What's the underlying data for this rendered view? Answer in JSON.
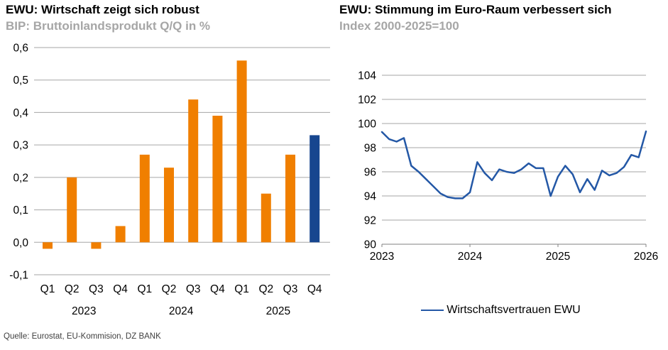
{
  "page": {
    "source_note": "Quelle: Eurostat, EU-Kommision, DZ BANK"
  },
  "left_chart": {
    "title": "EWU: Wirtschaft zeigt sich robust",
    "subtitle": "BIP: Bruttoinlandsprodukt Q/Q in %"
  },
  "right_chart": {
    "title": "EWU: Stimmung im Euro-Raum verbessert sich",
    "subtitle": "Index 2000-2025=100",
    "legend_label": "Wirtschaftsvertrauen EWU"
  },
  "chart_data": [
    {
      "type": "bar",
      "title": "EWU: Wirtschaft zeigt sich robust",
      "subtitle": "BIP: Bruttoinlandsprodukt Q/Q in %",
      "categories": [
        "Q1",
        "Q2",
        "Q3",
        "Q4",
        "Q1",
        "Q2",
        "Q3",
        "Q4",
        "Q1",
        "Q2",
        "Q3",
        "Q4"
      ],
      "year_groups": [
        {
          "label": "2023",
          "span": [
            0,
            3
          ]
        },
        {
          "label": "2024",
          "span": [
            4,
            7
          ]
        },
        {
          "label": "2025",
          "span": [
            8,
            11
          ]
        }
      ],
      "values": [
        -0.02,
        0.2,
        -0.02,
        0.05,
        0.27,
        0.23,
        0.44,
        0.39,
        0.56,
        0.15,
        0.27,
        0.33
      ],
      "highlight_index": 11,
      "ylim": [
        -0.1,
        0.6
      ],
      "ytick_values": [
        0.6,
        0.5,
        0.4,
        0.3,
        0.2,
        0.1,
        0.0,
        -0.1
      ],
      "ytick_labels": [
        "0,6",
        "0,5",
        "0,4",
        "0,3",
        "0,2",
        "0,1",
        "0,0",
        "-0,1"
      ],
      "grid": true,
      "colors": {
        "bar": "#F07F00",
        "highlight": "#17468F",
        "grid": "#A6A6A6"
      }
    },
    {
      "type": "line",
      "title": "EWU: Stimmung im Euro-Raum verbessert sich",
      "subtitle": "Index 2000-2025=100",
      "x_unit": "monthly",
      "x_range": [
        "2023-01",
        "2026-01"
      ],
      "series": [
        {
          "name": "Wirtschaftsvertrauen EWU",
          "color": "#2458A6",
          "values": [
            99.3,
            98.7,
            98.5,
            98.8,
            96.5,
            96.0,
            95.4,
            94.8,
            94.2,
            93.9,
            93.8,
            93.8,
            94.3,
            96.8,
            95.9,
            95.3,
            96.2,
            96.0,
            95.9,
            96.2,
            96.7,
            96.3,
            96.3,
            94.0,
            95.6,
            96.5,
            95.8,
            94.3,
            95.4,
            94.5,
            96.1,
            95.7,
            95.9,
            96.4,
            97.4,
            97.2,
            99.35
          ]
        }
      ],
      "ylim": [
        90,
        104
      ],
      "ytick_values": [
        104,
        102,
        100,
        98,
        96,
        94,
        92,
        90
      ],
      "xtick_labels": [
        "2023",
        "2024",
        "2025",
        "2026"
      ],
      "legend_position": "bottom-center",
      "grid": true,
      "colors": {
        "grid": "#A6A6A6",
        "axis": "#808080"
      }
    }
  ]
}
